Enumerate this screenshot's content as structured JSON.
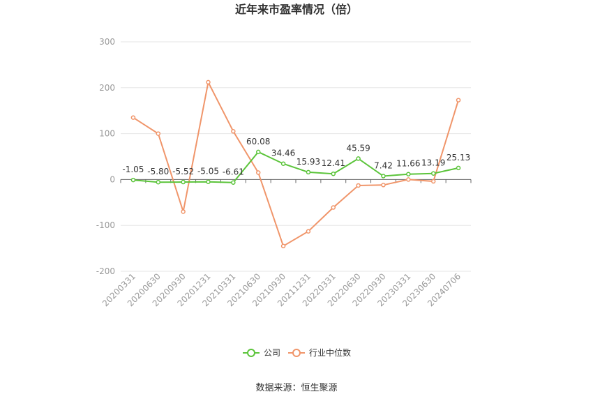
{
  "chart_data": {
    "type": "line",
    "title": "近年来市盈率情况（倍）",
    "categories": [
      "20200331",
      "20200630",
      "20200930",
      "20201231",
      "20210331",
      "20210630",
      "20210930",
      "20211231",
      "20220331",
      "20220630",
      "20220930",
      "20230331",
      "20230630",
      "20240706"
    ],
    "series": [
      {
        "name": "公司",
        "color": "#5bc43a",
        "values": [
          -1.05,
          -5.8,
          -5.52,
          -5.05,
          -6.61,
          60.08,
          34.46,
          15.93,
          12.41,
          45.59,
          7.42,
          11.66,
          13.19,
          25.13
        ],
        "labels": [
          "-1.05",
          "-5.80",
          "-5.52",
          "-5.05",
          "-6.61",
          "60.08",
          "34.46",
          "15.93",
          "12.41",
          "45.59",
          "7.42",
          "11.66",
          "13.19",
          "25.13"
        ]
      },
      {
        "name": "行业中位数",
        "color": "#f0956a",
        "values": [
          135,
          100,
          -70,
          212,
          105,
          15,
          -145,
          -113,
          -61,
          -13,
          -12,
          0,
          -4,
          173
        ]
      }
    ],
    "yticks": [
      300,
      200,
      100,
      0,
      -100,
      -200
    ],
    "ylim": [
      -200,
      300
    ],
    "grid": true,
    "legend": "bottom-center"
  },
  "source": "数据来源：恒生聚源"
}
